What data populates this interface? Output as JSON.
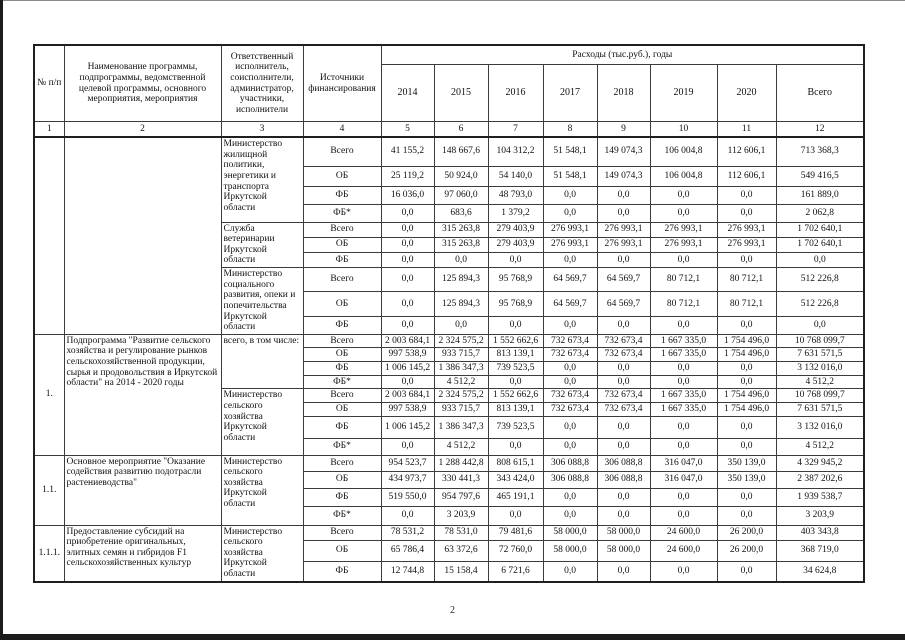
{
  "page": {
    "number": "2"
  },
  "table": {
    "header": {
      "col_npp": "№ п/п",
      "col_name": "Наименование программы, подпрограммы, ведомственной целевой программы, основного мероприятия, мероприятия",
      "col_executor": "Ответственный исполнитель, соисполнители, администратор, участники, исполнители",
      "col_sources": "Источники финансирования",
      "expenses_title": "Расходы (тыс.руб.), годы",
      "years": [
        "2014",
        "2015",
        "2016",
        "2017",
        "2018",
        "2019",
        "2020"
      ],
      "total_label": "Всего",
      "col_numbers": [
        "1",
        "2",
        "3",
        "4",
        "5",
        "6",
        "7",
        "8",
        "9",
        "10",
        "11",
        "12"
      ]
    },
    "groups": [
      {
        "num": "",
        "name": "",
        "executors": [
          {
            "executor": "Министерство жилищной политики, энергетики и транспорта Иркутской области",
            "rows": [
              {
                "source": "Всего",
                "values": [
                  "41 155,2",
                  "148 667,6",
                  "104 312,2",
                  "51 548,1",
                  "149 074,3",
                  "106 004,8",
                  "112 606,1",
                  "713 368,3"
                ]
              },
              {
                "source": "ОБ",
                "values": [
                  "25 119,2",
                  "50 924,0",
                  "54 140,0",
                  "51 548,1",
                  "149 074,3",
                  "106 004,8",
                  "112 606,1",
                  "549 416,5"
                ]
              },
              {
                "source": "ФБ",
                "values": [
                  "16 036,0",
                  "97 060,0",
                  "48 793,0",
                  "0,0",
                  "0,0",
                  "0,0",
                  "0,0",
                  "161 889,0"
                ]
              },
              {
                "source": "ФБ*",
                "values": [
                  "0,0",
                  "683,6",
                  "1 379,2",
                  "0,0",
                  "0,0",
                  "0,0",
                  "0,0",
                  "2 062,8"
                ]
              }
            ]
          },
          {
            "executor": "Служба ветеринарии Иркутской области",
            "rows": [
              {
                "source": "Всего",
                "values": [
                  "0,0",
                  "315 263,8",
                  "279 403,9",
                  "276 993,1",
                  "276 993,1",
                  "276 993,1",
                  "276 993,1",
                  "1 702 640,1"
                ]
              },
              {
                "source": "ОБ",
                "values": [
                  "0,0",
                  "315 263,8",
                  "279 403,9",
                  "276 993,1",
                  "276 993,1",
                  "276 993,1",
                  "276 993,1",
                  "1 702 640,1"
                ]
              },
              {
                "source": "ФБ",
                "values": [
                  "0,0",
                  "0,0",
                  "0,0",
                  "0,0",
                  "0,0",
                  "0,0",
                  "0,0",
                  "0,0"
                ]
              }
            ]
          },
          {
            "executor": "Министерство социального развития, опеки и попечительства Иркутской области",
            "rows": [
              {
                "source": "Всего",
                "values": [
                  "0,0",
                  "125 894,3",
                  "95 768,9",
                  "64 569,7",
                  "64 569,7",
                  "80 712,1",
                  "80 712,1",
                  "512 226,8"
                ]
              },
              {
                "source": "ОБ",
                "values": [
                  "0,0",
                  "125 894,3",
                  "95 768,9",
                  "64 569,7",
                  "64 569,7",
                  "80 712,1",
                  "80 712,1",
                  "512 226,8"
                ]
              },
              {
                "source": "ФБ",
                "values": [
                  "0,0",
                  "0,0",
                  "0,0",
                  "0,0",
                  "0,0",
                  "0,0",
                  "0,0",
                  "0,0"
                ]
              }
            ]
          }
        ]
      },
      {
        "num": "1.",
        "name": "Подпрограмма \"Развитие сельского хозяйства и регулирование рынков сельскохозяйственной продукции, сырья и продовольствия в Иркутской области\" на 2014 - 2020 годы",
        "executors": [
          {
            "executor": "всего, в том числе:",
            "rows": [
              {
                "source": "Всего",
                "values": [
                  "2 003 684,1",
                  "2 324 575,2",
                  "1 552 662,6",
                  "732 673,4",
                  "732 673,4",
                  "1 667 335,0",
                  "1 754 496,0",
                  "10 768 099,7"
                ]
              },
              {
                "source": "ОБ",
                "values": [
                  "997 538,9",
                  "933 715,7",
                  "813 139,1",
                  "732 673,4",
                  "732 673,4",
                  "1 667 335,0",
                  "1 754 496,0",
                  "7 631 571,5"
                ]
              },
              {
                "source": "ФБ",
                "values": [
                  "1 006 145,2",
                  "1 386 347,3",
                  "739 523,5",
                  "0,0",
                  "0,0",
                  "0,0",
                  "0,0",
                  "3 132 016,0"
                ]
              },
              {
                "source": "ФБ*",
                "values": [
                  "0,0",
                  "4 512,2",
                  "0,0",
                  "0,0",
                  "0,0",
                  "0,0",
                  "0,0",
                  "4 512,2"
                ]
              }
            ]
          },
          {
            "executor": "Министерство сельского хозяйства Иркутской области",
            "rows": [
              {
                "source": "Всего",
                "values": [
                  "2 003 684,1",
                  "2 324 575,2",
                  "1 552 662,6",
                  "732 673,4",
                  "732 673,4",
                  "1 667 335,0",
                  "1 754 496,0",
                  "10 768 099,7"
                ]
              },
              {
                "source": "ОБ",
                "values": [
                  "997 538,9",
                  "933 715,7",
                  "813 139,1",
                  "732 673,4",
                  "732 673,4",
                  "1 667 335,0",
                  "1 754 496,0",
                  "7 631 571,5"
                ]
              },
              {
                "source": "ФБ",
                "values": [
                  "1 006 145,2",
                  "1 386 347,3",
                  "739 523,5",
                  "0,0",
                  "0,0",
                  "0,0",
                  "0,0",
                  "3 132 016,0"
                ]
              },
              {
                "source": "ФБ*",
                "values": [
                  "0,0",
                  "4 512,2",
                  "0,0",
                  "0,0",
                  "0,0",
                  "0,0",
                  "0,0",
                  "4 512,2"
                ]
              }
            ]
          }
        ]
      },
      {
        "num": "1.1.",
        "name": "Основное мероприятие \"Оказание содействия развитию подотрасли растениеводства\"",
        "executors": [
          {
            "executor": "Министерство сельского хозяйства Иркутской области",
            "rows": [
              {
                "source": "Всего",
                "values": [
                  "954 523,7",
                  "1 288 442,8",
                  "808 615,1",
                  "306 088,8",
                  "306 088,8",
                  "316 047,0",
                  "350 139,0",
                  "4 329 945,2"
                ]
              },
              {
                "source": "ОБ",
                "values": [
                  "434 973,7",
                  "330 441,3",
                  "343 424,0",
                  "306 088,8",
                  "306 088,8",
                  "316 047,0",
                  "350 139,0",
                  "2 387 202,6"
                ]
              },
              {
                "source": "ФБ",
                "values": [
                  "519 550,0",
                  "954 797,6",
                  "465 191,1",
                  "0,0",
                  "0,0",
                  "0,0",
                  "0,0",
                  "1 939 538,7"
                ]
              },
              {
                "source": "ФБ*",
                "values": [
                  "0,0",
                  "3 203,9",
                  "0,0",
                  "0,0",
                  "0,0",
                  "0,0",
                  "0,0",
                  "3 203,9"
                ]
              }
            ]
          }
        ]
      },
      {
        "num": "1.1.1.",
        "name": "Предоставление субсидий на приобретение оригинальных, элитных семян и гибридов F1 сельскохозяйственных культур",
        "executors": [
          {
            "executor": "Министерство сельского хозяйства Иркутской области",
            "rows": [
              {
                "source": "Всего",
                "values": [
                  "78 531,2",
                  "78 531,0",
                  "79 481,6",
                  "58 000,0",
                  "58 000,0",
                  "24 600,0",
                  "26 200,0",
                  "403 343,8"
                ]
              },
              {
                "source": "ОБ",
                "values": [
                  "65 786,4",
                  "63 372,6",
                  "72 760,0",
                  "58 000,0",
                  "58 000,0",
                  "24 600,0",
                  "26 200,0",
                  "368 719,0"
                ]
              },
              {
                "source": "ФБ",
                "values": [
                  "12 744,8",
                  "15 158,4",
                  "6 721,6",
                  "0,0",
                  "0,0",
                  "0,0",
                  "0,0",
                  "34 624,8"
                ]
              }
            ]
          }
        ]
      }
    ]
  }
}
